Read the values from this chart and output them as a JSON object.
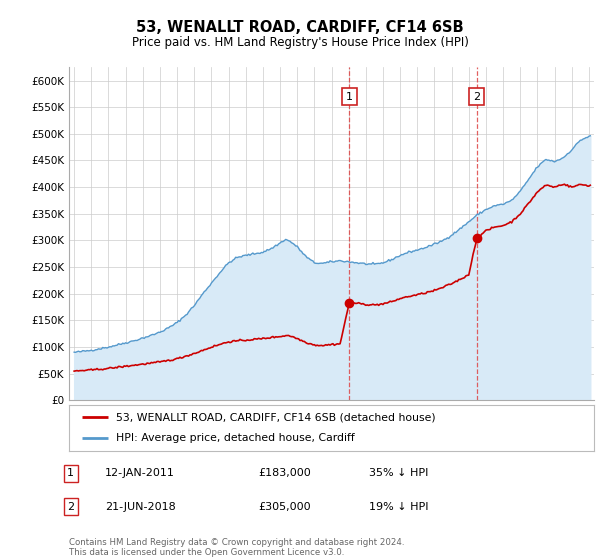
{
  "title": "53, WENALLT ROAD, CARDIFF, CF14 6SB",
  "subtitle": "Price paid vs. HM Land Registry's House Price Index (HPI)",
  "ylabel_ticks": [
    "£0",
    "£50K",
    "£100K",
    "£150K",
    "£200K",
    "£250K",
    "£300K",
    "£350K",
    "£400K",
    "£450K",
    "£500K",
    "£550K",
    "£600K"
  ],
  "ytick_values": [
    0,
    50000,
    100000,
    150000,
    200000,
    250000,
    300000,
    350000,
    400000,
    450000,
    500000,
    550000,
    600000
  ],
  "ylim": [
    0,
    625000
  ],
  "xlim_start": 1994.7,
  "xlim_end": 2025.3,
  "hpi_color": "#5599cc",
  "hpi_fill_color": "#d8eaf7",
  "property_color": "#cc0000",
  "sale1_x": 2011.04,
  "sale1_y": 183000,
  "sale2_x": 2018.47,
  "sale2_y": 305000,
  "legend_property": "53, WENALLT ROAD, CARDIFF, CF14 6SB (detached house)",
  "legend_hpi": "HPI: Average price, detached house, Cardiff",
  "annotation1_date": "12-JAN-2011",
  "annotation1_price": "£183,000",
  "annotation1_hpi": "35% ↓ HPI",
  "annotation2_date": "21-JUN-2018",
  "annotation2_price": "£305,000",
  "annotation2_hpi": "19% ↓ HPI",
  "footer": "Contains HM Land Registry data © Crown copyright and database right 2024.\nThis data is licensed under the Open Government Licence v3.0.",
  "bg_color": "#ffffff"
}
